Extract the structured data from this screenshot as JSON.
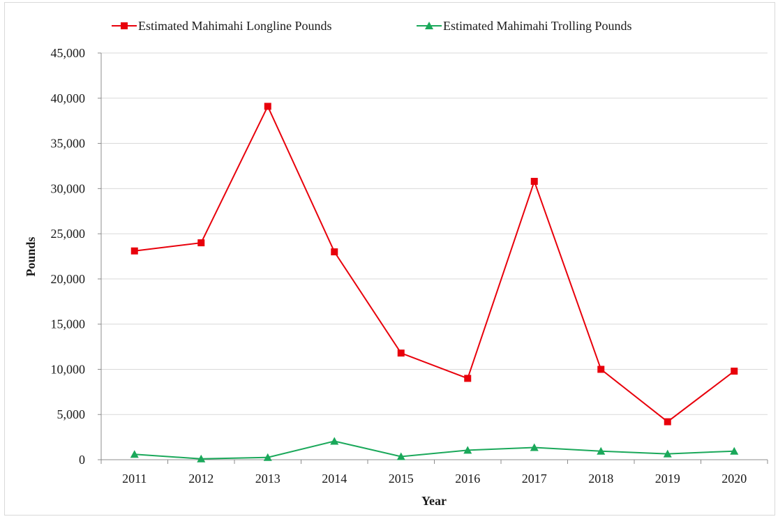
{
  "chart_data": {
    "type": "line",
    "title": "",
    "xlabel": "Year",
    "ylabel": "Pounds",
    "categories": [
      "2011",
      "2012",
      "2013",
      "2014",
      "2015",
      "2016",
      "2017",
      "2018",
      "2019",
      "2020"
    ],
    "ylim": [
      0,
      45000
    ],
    "yticks": [
      0,
      5000,
      10000,
      15000,
      20000,
      25000,
      30000,
      35000,
      40000,
      45000
    ],
    "ytick_labels": [
      "0",
      "5,000",
      "10,000",
      "15,000",
      "20,000",
      "25,000",
      "30,000",
      "35,000",
      "40,000",
      "45,000"
    ],
    "grid": "horizontal",
    "legend_position": "top",
    "series": [
      {
        "name": "Estimated Mahimahi Longline Pounds",
        "color": "#e8000b",
        "marker": "square",
        "values": [
          23100,
          24000,
          39100,
          23000,
          11800,
          9000,
          30800,
          10000,
          4200,
          9800
        ]
      },
      {
        "name": "Estimated Mahimahi Trolling Pounds",
        "color": "#1aa85a",
        "marker": "triangle",
        "values": [
          600,
          100,
          250,
          2050,
          350,
          1050,
          1350,
          950,
          650,
          950
        ]
      }
    ]
  }
}
